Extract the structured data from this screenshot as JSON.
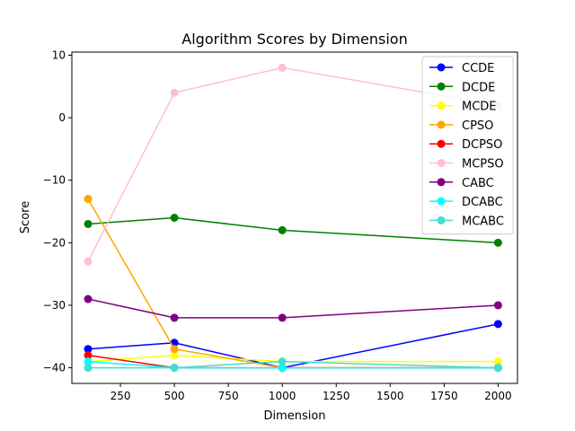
{
  "chart_data": {
    "type": "line",
    "title": "Algorithm Scores by Dimension",
    "xlabel": "Dimension",
    "ylabel": "Score",
    "x": [
      100,
      500,
      1000,
      2000
    ],
    "xlim": [
      25,
      2090
    ],
    "ylim": [
      -42.5,
      10.5
    ],
    "xticks": [
      250,
      500,
      750,
      1000,
      1250,
      1500,
      1750,
      2000
    ],
    "xtick_labels": [
      "250",
      "500",
      "750",
      "1000",
      "1250",
      "1500",
      "1750",
      "2000"
    ],
    "yticks": [
      10,
      0,
      -10,
      -20,
      -30,
      -40
    ],
    "ytick_labels": [
      "10",
      "0",
      "−10",
      "−20",
      "−30",
      "−40"
    ],
    "grid": false,
    "legend_position": "top-right",
    "series": [
      {
        "name": "CCDE",
        "color": "#0000ff",
        "values": [
          -37,
          -36,
          -40,
          -33
        ]
      },
      {
        "name": "DCDE",
        "color": "#008000",
        "values": [
          -17,
          -16,
          -18,
          -20
        ]
      },
      {
        "name": "MCDE",
        "color": "#ffff00",
        "values": [
          -39,
          -38,
          -39,
          -39
        ]
      },
      {
        "name": "CPSO",
        "color": "#ffa500",
        "values": [
          -13,
          -37,
          -40,
          -40
        ]
      },
      {
        "name": "DCPSO",
        "color": "#ff0000",
        "values": [
          -38,
          -40,
          -40,
          -40
        ]
      },
      {
        "name": "MCPSO",
        "color": "#ffc0cb",
        "values": [
          -23,
          4,
          8,
          2
        ]
      },
      {
        "name": "CABC",
        "color": "#800080",
        "values": [
          -29,
          -32,
          -32,
          -30
        ]
      },
      {
        "name": "DCABC",
        "color": "#00ffff",
        "values": [
          -39,
          -40,
          -40,
          -40
        ]
      },
      {
        "name": "MCABC",
        "color": "#40e0d0",
        "values": [
          -40,
          -40,
          -39,
          -40
        ]
      }
    ]
  }
}
